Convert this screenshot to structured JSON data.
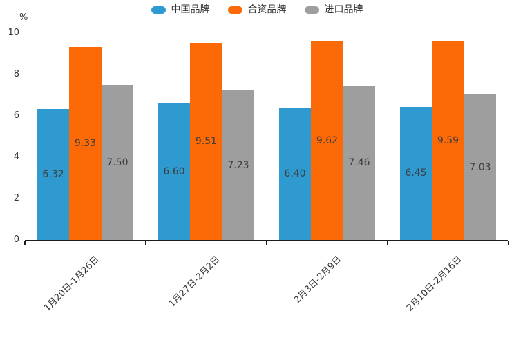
{
  "chart_data": {
    "type": "bar",
    "title": "",
    "ylabel": "%",
    "xlabel": "",
    "ylim": [
      0,
      10
    ],
    "yticks": [
      0,
      2,
      4,
      6,
      8,
      10
    ],
    "grid": false,
    "legend_position": "top-center",
    "value_labels_position": "inside-center",
    "value_labels_format": "2-decimals",
    "categories": [
      "1月20日-1月26日",
      "1月27日-2月2日",
      "2月3日-2月9日",
      "2月10日-2月16日"
    ],
    "series": [
      {
        "name": "中国品牌",
        "color": "#2E9AD0",
        "values": [
          6.32,
          6.6,
          6.4,
          6.45
        ]
      },
      {
        "name": "合资品牌",
        "color": "#FB6A06",
        "values": [
          9.33,
          9.51,
          9.62,
          9.59
        ]
      },
      {
        "name": "进口品牌",
        "color": "#9E9E9E",
        "values": [
          7.5,
          7.23,
          7.46,
          7.03
        ]
      }
    ],
    "colors": {
      "axis": "#1c1c1c",
      "tick_text": "#333333",
      "value_text": "#3d3d3d",
      "background": "#ffffff"
    }
  }
}
